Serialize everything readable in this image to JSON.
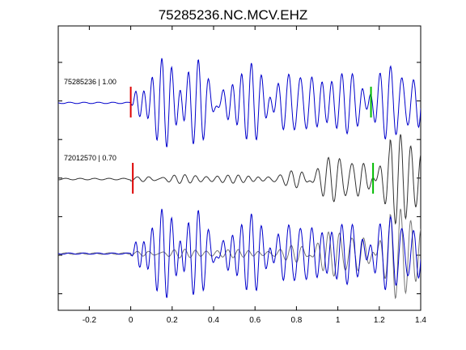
{
  "chart_data": {
    "type": "line",
    "title": "75285236.NC.MCV.EHZ",
    "xlim": [
      -0.35,
      1.4
    ],
    "x_ticks": [
      -0.2,
      0,
      0.2,
      0.4,
      0.6,
      0.8,
      1,
      1.2,
      1.4
    ],
    "x_tick_labels": [
      "-0.2",
      "0",
      "0.2",
      "0.4",
      "0.6",
      "0.8",
      "1",
      "1.2",
      "1.4"
    ],
    "grid": false,
    "colors": {
      "template": "#0000cc",
      "match": "#333333",
      "match_overlay": "#777777",
      "p_pick": "#dd0000",
      "s_pick": "#00bb00",
      "axes": "#000000"
    },
    "traces": [
      {
        "label": "75285236 | 1.00",
        "color": "template",
        "onset": 0.0,
        "amplitude": 1.0,
        "p_pick": 0.0,
        "s_pick": 1.16,
        "seed": 3
      },
      {
        "label": "72012570 | 0.70",
        "color": "match",
        "onset": 0.0,
        "amplitude": 1.0,
        "p_pick": 0.01,
        "s_pick": 1.17,
        "seed": 11
      },
      {
        "label": "",
        "overlay": true,
        "seed_a": 3,
        "seed_b": 11
      }
    ]
  }
}
